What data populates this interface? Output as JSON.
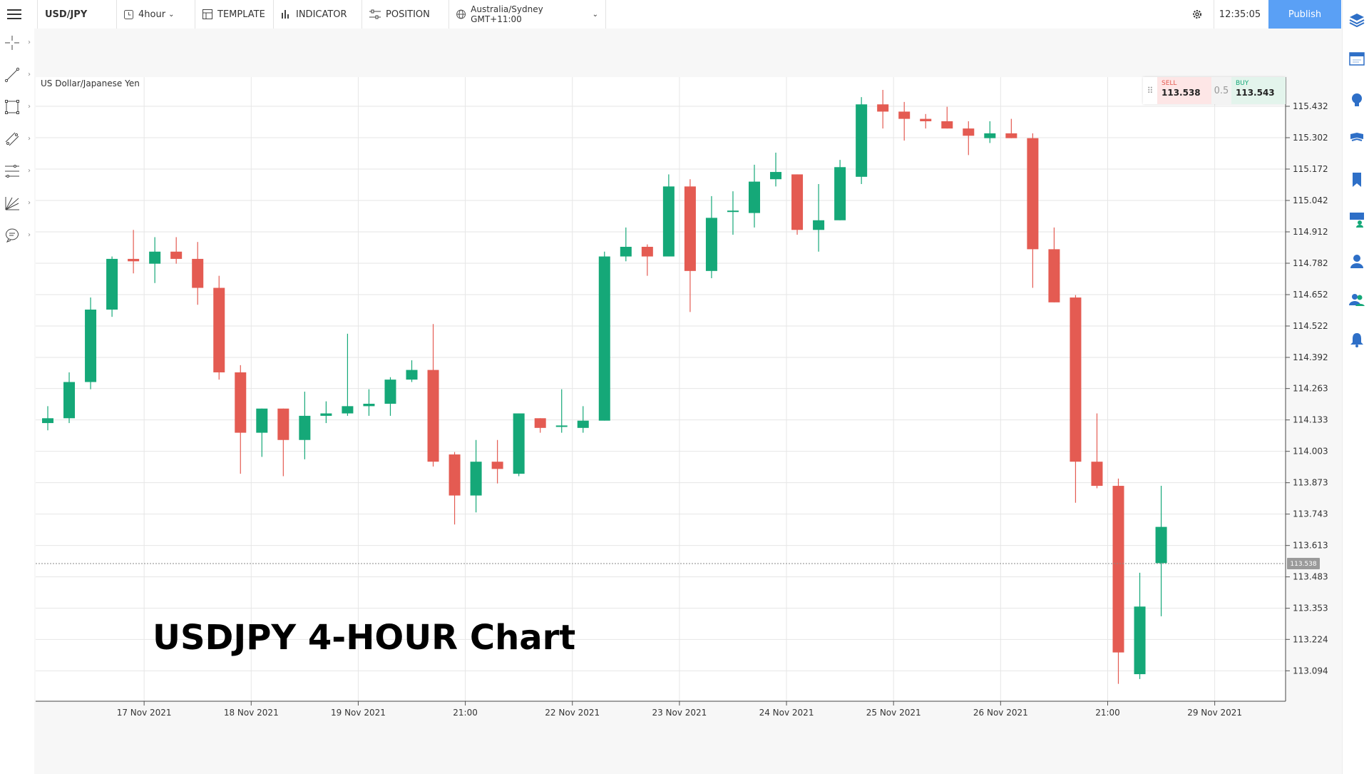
{
  "toolbar": {
    "symbol": "USD/JPY",
    "interval": "4hour",
    "template_label": "TEMPLATE",
    "indicator_label": "INDICATOR",
    "position_label": "POSITION",
    "timezone": "Australia/Sydney GMT+11:00",
    "clock": "12:35:05",
    "publish_label": "Publish"
  },
  "chart_title": "US Dollar/Japanese Yen",
  "caption": "USDJPY 4-HOUR Chart",
  "trade": {
    "sell_label": "SELL",
    "sell_price": "113.538",
    "spread": "0.5",
    "buy_label": "BUY",
    "buy_price": "113.543"
  },
  "left_tools": [
    "crosshair-icon",
    "trend-line-icon",
    "rectangle-icon",
    "channel-icon",
    "fib-levels-icon",
    "gann-fan-icon",
    "annotation-icon"
  ],
  "right_tools": [
    "layers-icon",
    "calendar-icon",
    "idea-icon",
    "flag-icon",
    "bookmark-icon",
    "screen-user-icon",
    "user-icon",
    "users-icon",
    "bell-icon"
  ],
  "colors": {
    "up": "#15a878",
    "down": "#e45b52",
    "publish": "#5aa0f5",
    "grid": "#e6e6e6"
  },
  "chart_data": {
    "type": "candlestick",
    "current_price": 113.538,
    "current_price_label": "113.538",
    "ylim": [
      113.0,
      115.7
    ],
    "y_ticks": [
      "115.432",
      "115.302",
      "115.172",
      "115.042",
      "114.912",
      "114.782",
      "114.652",
      "114.522",
      "114.392",
      "114.263",
      "114.133",
      "114.003",
      "113.873",
      "113.743",
      "113.613",
      "113.483",
      "113.353",
      "113.224",
      "113.094"
    ],
    "x_ticks": [
      {
        "label": "17 Nov 2021",
        "index": 4.5
      },
      {
        "label": "18 Nov 2021",
        "index": 9.5
      },
      {
        "label": "19 Nov 2021",
        "index": 14.5
      },
      {
        "label": "21:00",
        "index": 19.5
      },
      {
        "label": "22 Nov 2021",
        "index": 24.5
      },
      {
        "label": "23 Nov 2021",
        "index": 29.5
      },
      {
        "label": "24 Nov 2021",
        "index": 34.5
      },
      {
        "label": "25 Nov 2021",
        "index": 39.5
      },
      {
        "label": "26 Nov 2021",
        "index": 44.5
      },
      {
        "label": "21:00",
        "index": 49.5
      },
      {
        "label": "29 Nov 2021",
        "index": 54.5
      }
    ],
    "candles": [
      {
        "o": 114.12,
        "h": 114.19,
        "l": 114.09,
        "c": 114.14
      },
      {
        "o": 114.14,
        "h": 114.33,
        "l": 114.12,
        "c": 114.29
      },
      {
        "o": 114.29,
        "h": 114.64,
        "l": 114.26,
        "c": 114.59
      },
      {
        "o": 114.59,
        "h": 114.81,
        "l": 114.56,
        "c": 114.8
      },
      {
        "o": 114.8,
        "h": 114.92,
        "l": 114.74,
        "c": 114.79
      },
      {
        "o": 114.78,
        "h": 114.89,
        "l": 114.7,
        "c": 114.83
      },
      {
        "o": 114.83,
        "h": 114.89,
        "l": 114.78,
        "c": 114.8
      },
      {
        "o": 114.8,
        "h": 114.87,
        "l": 114.61,
        "c": 114.68
      },
      {
        "o": 114.68,
        "h": 114.73,
        "l": 114.3,
        "c": 114.33
      },
      {
        "o": 114.33,
        "h": 114.36,
        "l": 113.91,
        "c": 114.08
      },
      {
        "o": 114.08,
        "h": 114.18,
        "l": 113.98,
        "c": 114.18
      },
      {
        "o": 114.18,
        "h": 114.18,
        "l": 113.9,
        "c": 114.05
      },
      {
        "o": 114.05,
        "h": 114.25,
        "l": 113.97,
        "c": 114.15
      },
      {
        "o": 114.15,
        "h": 114.21,
        "l": 114.12,
        "c": 114.16
      },
      {
        "o": 114.16,
        "h": 114.49,
        "l": 114.15,
        "c": 114.19
      },
      {
        "o": 114.19,
        "h": 114.26,
        "l": 114.15,
        "c": 114.2
      },
      {
        "o": 114.2,
        "h": 114.31,
        "l": 114.15,
        "c": 114.3
      },
      {
        "o": 114.3,
        "h": 114.38,
        "l": 114.29,
        "c": 114.34
      },
      {
        "o": 114.34,
        "h": 114.53,
        "l": 113.94,
        "c": 113.96
      },
      {
        "o": 113.99,
        "h": 114.0,
        "l": 113.7,
        "c": 113.82
      },
      {
        "o": 113.82,
        "h": 114.05,
        "l": 113.75,
        "c": 113.96
      },
      {
        "o": 113.96,
        "h": 114.05,
        "l": 113.87,
        "c": 113.93
      },
      {
        "o": 113.91,
        "h": 114.16,
        "l": 113.9,
        "c": 114.16
      },
      {
        "o": 114.14,
        "h": 114.14,
        "l": 114.08,
        "c": 114.1
      },
      {
        "o": 114.11,
        "h": 114.26,
        "l": 114.08,
        "c": 114.11
      },
      {
        "o": 114.1,
        "h": 114.19,
        "l": 114.08,
        "c": 114.13
      },
      {
        "o": 114.13,
        "h": 114.83,
        "l": 114.13,
        "c": 114.81
      },
      {
        "o": 114.81,
        "h": 114.93,
        "l": 114.79,
        "c": 114.85
      },
      {
        "o": 114.85,
        "h": 114.86,
        "l": 114.73,
        "c": 114.81
      },
      {
        "o": 114.81,
        "h": 115.15,
        "l": 114.81,
        "c": 115.1
      },
      {
        "o": 115.1,
        "h": 115.13,
        "l": 114.58,
        "c": 114.75
      },
      {
        "o": 114.75,
        "h": 115.06,
        "l": 114.72,
        "c": 114.97
      },
      {
        "o": 115.0,
        "h": 115.08,
        "l": 114.9,
        "c": 115.0
      },
      {
        "o": 114.99,
        "h": 115.19,
        "l": 114.93,
        "c": 115.12
      },
      {
        "o": 115.13,
        "h": 115.24,
        "l": 115.1,
        "c": 115.16
      },
      {
        "o": 115.15,
        "h": 115.15,
        "l": 114.9,
        "c": 114.92
      },
      {
        "o": 114.92,
        "h": 115.11,
        "l": 114.83,
        "c": 114.96
      },
      {
        "o": 114.96,
        "h": 115.21,
        "l": 114.96,
        "c": 115.18
      },
      {
        "o": 115.14,
        "h": 115.47,
        "l": 115.11,
        "c": 115.44
      },
      {
        "o": 115.44,
        "h": 115.5,
        "l": 115.34,
        "c": 115.41
      },
      {
        "o": 115.41,
        "h": 115.45,
        "l": 115.29,
        "c": 115.38
      },
      {
        "o": 115.38,
        "h": 115.4,
        "l": 115.34,
        "c": 115.37
      },
      {
        "o": 115.37,
        "h": 115.43,
        "l": 115.34,
        "c": 115.34
      },
      {
        "o": 115.34,
        "h": 115.37,
        "l": 115.23,
        "c": 115.31
      },
      {
        "o": 115.3,
        "h": 115.37,
        "l": 115.28,
        "c": 115.32
      },
      {
        "o": 115.32,
        "h": 115.38,
        "l": 115.3,
        "c": 115.3
      },
      {
        "o": 115.3,
        "h": 115.32,
        "l": 114.68,
        "c": 114.84
      },
      {
        "o": 114.84,
        "h": 114.93,
        "l": 114.62,
        "c": 114.62
      },
      {
        "o": 114.64,
        "h": 114.65,
        "l": 113.79,
        "c": 113.96
      },
      {
        "o": 113.96,
        "h": 114.16,
        "l": 113.85,
        "c": 113.86
      },
      {
        "o": 113.86,
        "h": 113.89,
        "l": 113.04,
        "c": 113.17
      },
      {
        "o": 113.08,
        "h": 113.5,
        "l": 113.06,
        "c": 113.36
      },
      {
        "o": 113.54,
        "h": 113.86,
        "l": 113.32,
        "c": 113.69
      }
    ]
  }
}
